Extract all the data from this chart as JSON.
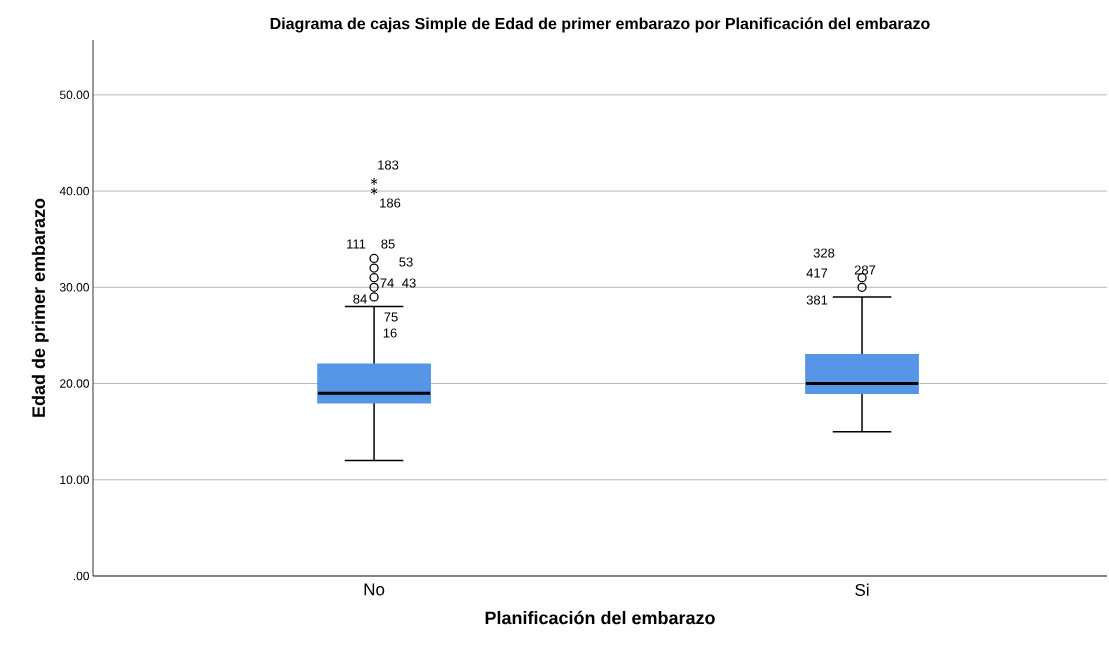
{
  "chart_data": {
    "type": "box",
    "title": "Diagrama de cajas Simple de Edad de primer embarazo por Planificación del embarazo",
    "xlabel": "Planificación del embarazo",
    "ylabel": "Edad de primer embarazo",
    "categories": [
      "No",
      "Si"
    ],
    "color": "#5596e6",
    "boxes": [
      {
        "low": 12,
        "q1": 18,
        "median": 19,
        "q3": 22,
        "high": 28,
        "outliers": [
          29,
          30,
          31,
          32,
          33,
          40,
          41
        ]
      },
      {
        "low": 15,
        "q1": 19,
        "median": 20,
        "q3": 23,
        "high": 29,
        "outliers": [
          30,
          31
        ]
      }
    ],
    "ylim": [
      0,
      55.7
    ],
    "yticks": [
      {
        "value": 0,
        "label": ".00"
      },
      {
        "value": 10,
        "label": "10.00"
      },
      {
        "value": 20,
        "label": "20.00"
      },
      {
        "value": 30,
        "label": "30.00"
      },
      {
        "value": 40,
        "label": "40.00"
      },
      {
        "value": 50,
        "label": "50.00"
      }
    ],
    "grid": "y",
    "annotations": [
      "183",
      "186",
      "111",
      "85",
      "53",
      "74",
      "43",
      "84",
      "75",
      "16",
      "328",
      "417",
      "287",
      "381"
    ]
  }
}
